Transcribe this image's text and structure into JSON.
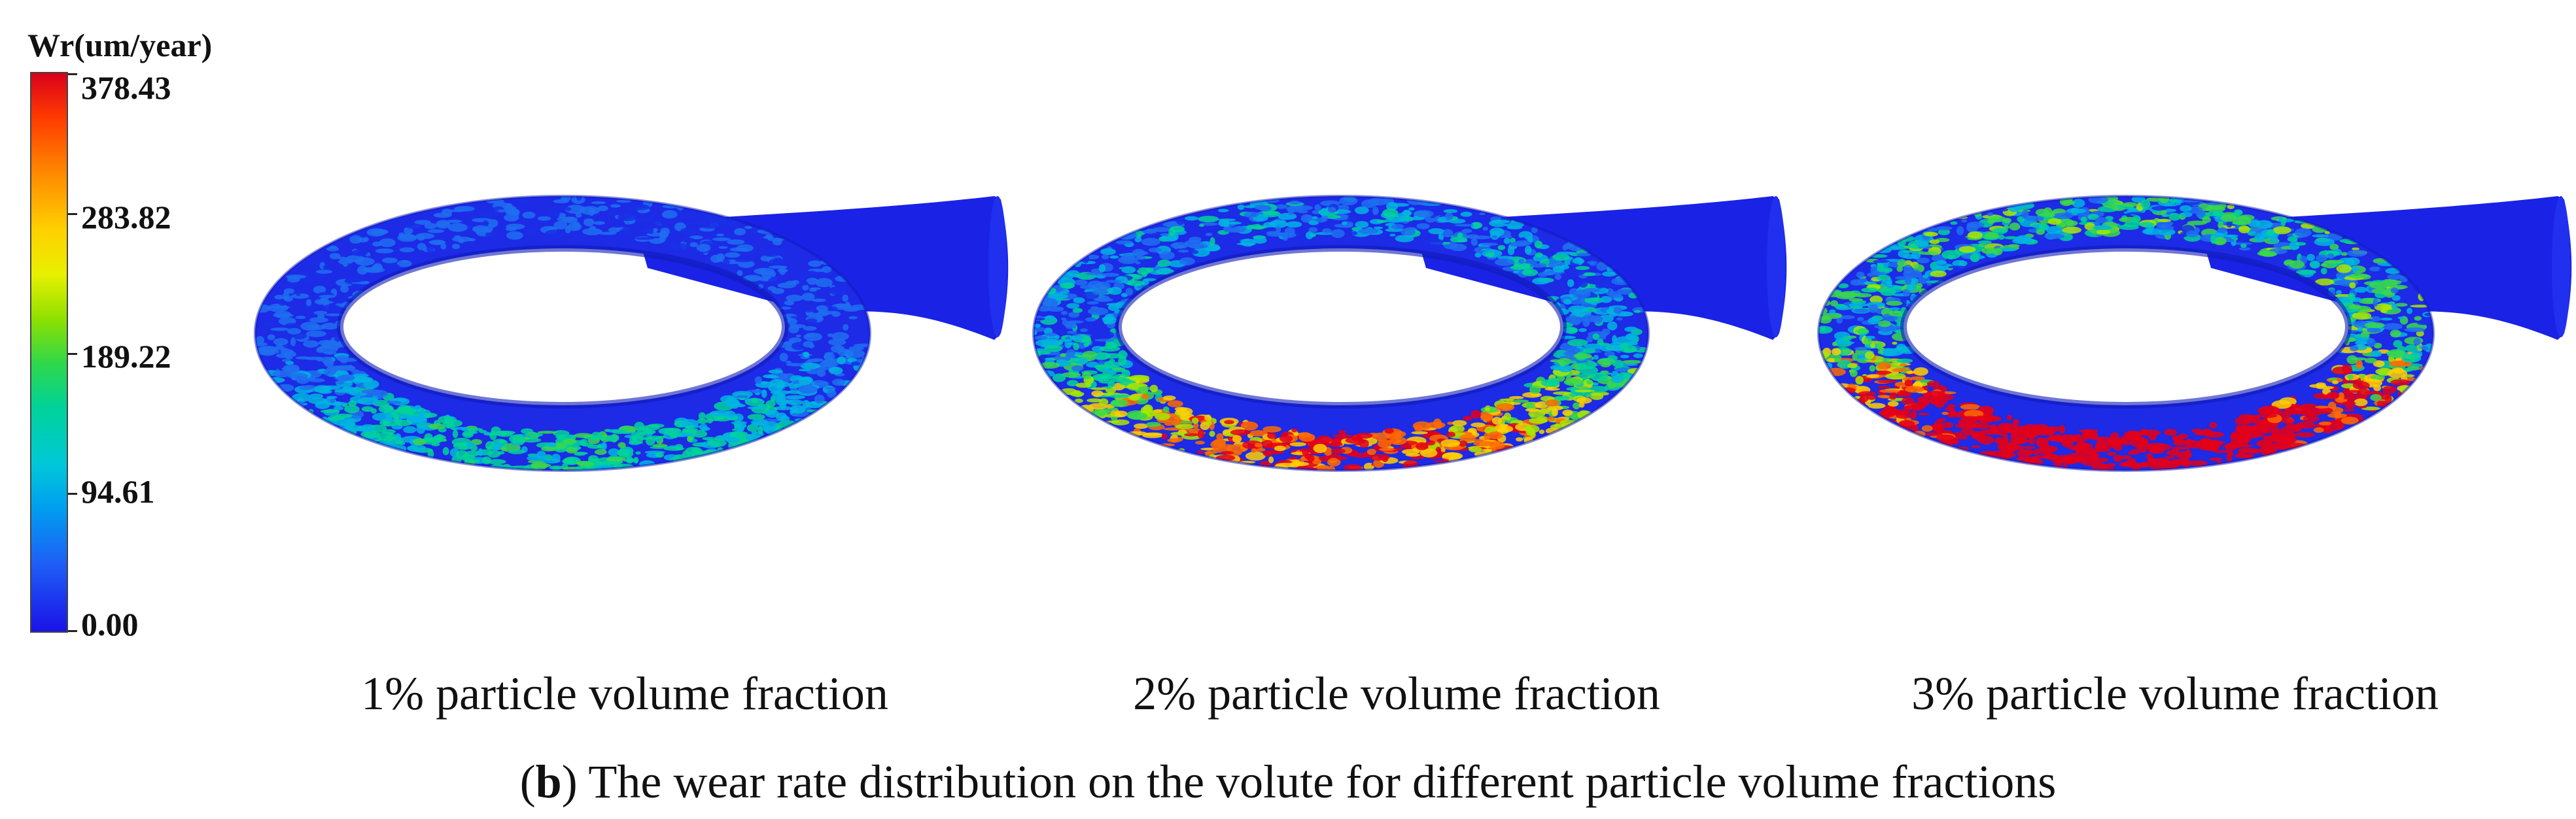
{
  "colorbar": {
    "title": "Wr(um/year)",
    "ticks": [
      "378.43",
      "283.82",
      "189.22",
      "94.61",
      "0.00"
    ],
    "colors": {
      "max": "#d9001a",
      "mid": "#2fd84a",
      "min": "#1a12e8"
    }
  },
  "panels": [
    {
      "caption": "1% particle volume fraction",
      "wear_level": 0.25
    },
    {
      "caption": "2% particle volume fraction",
      "wear_level": 0.55
    },
    {
      "caption": "3% particle volume fraction",
      "wear_level": 0.85
    }
  ],
  "figure_caption": {
    "label": "b",
    "text": "The wear rate distribution on the volute for different particle volume fractions"
  }
}
